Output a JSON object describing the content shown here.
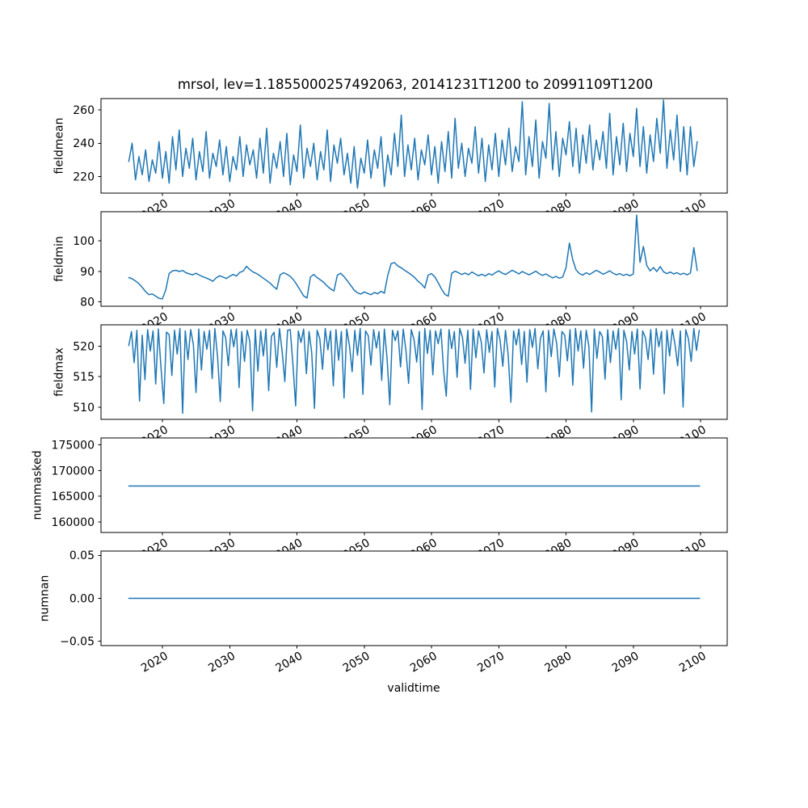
{
  "chart_data": {
    "type": "line",
    "title": "mrsol, lev=1.1855000257492063, 20141231T1200 to 20991109T1200",
    "xlabel": "validtime",
    "line_color": "#1f77b4",
    "background_color": "#ffffff",
    "axis_color": "#000000",
    "grid": "off",
    "legend": "none",
    "xlim": [
      2010.87,
      2103.96
    ],
    "x_ticks": [
      2020,
      2030,
      2040,
      2050,
      2060,
      2070,
      2080,
      2090,
      2100
    ],
    "xtick_labels": [
      "2020",
      "2030",
      "2040",
      "2050",
      "2060",
      "2070",
      "2080",
      "2090",
      "2100"
    ],
    "subplots": [
      {
        "ylabel": "fieldmean",
        "ylim": [
          210.0,
          266.9
        ],
        "yticks": [
          220,
          240,
          260
        ],
        "ytick_labels": [
          "220",
          "240",
          "260"
        ],
        "x0": 2015.0,
        "dx": 0.5,
        "values": [
          229,
          240,
          218,
          232,
          221,
          236,
          217,
          230,
          222,
          241,
          219,
          235,
          216,
          244,
          224,
          248,
          220,
          237,
          225,
          243,
          218,
          235,
          223,
          247,
          219,
          234,
          226,
          242,
          221,
          238,
          217,
          232,
          224,
          244,
          220,
          239,
          227,
          236,
          219,
          243,
          222,
          249,
          216,
          234,
          225,
          241,
          220,
          246,
          215,
          233,
          223,
          251,
          219,
          237,
          226,
          240,
          218,
          235,
          224,
          248,
          217,
          239,
          228,
          243,
          221,
          234,
          216,
          238,
          213,
          231,
          222,
          242,
          219,
          236,
          225,
          244,
          214,
          233,
          221,
          246,
          226,
          257,
          220,
          239,
          224,
          243,
          218,
          236,
          227,
          245,
          221,
          238,
          216,
          241,
          223,
          247,
          219,
          255,
          225,
          240,
          220,
          237,
          228,
          250,
          222,
          243,
          217,
          239,
          224,
          246,
          220,
          242,
          227,
          249,
          223,
          238,
          229,
          265,
          221,
          244,
          226,
          254,
          219,
          241,
          231,
          264,
          224,
          247,
          220,
          243,
          233,
          253,
          226,
          249,
          222,
          245,
          228,
          251,
          224,
          242,
          230,
          247,
          225,
          258,
          221,
          244,
          227,
          252,
          223,
          246,
          232,
          261,
          226,
          250,
          222,
          245,
          229,
          255,
          234,
          266,
          225,
          248,
          230,
          257,
          223,
          250,
          221,
          250,
          226,
          241
        ]
      },
      {
        "ylabel": "fieldmin",
        "ylim": [
          78.6,
          109.6
        ],
        "yticks": [
          80,
          90,
          100
        ],
        "ytick_labels": [
          "80",
          "90",
          "100"
        ],
        "x0": 2015.0,
        "dx": 0.5,
        "values": [
          88.0,
          87.6,
          86.9,
          86.0,
          84.8,
          83.4,
          82.4,
          82.6,
          81.9,
          81.2,
          81.0,
          84.0,
          89.3,
          90.2,
          90.4,
          90.0,
          90.3,
          89.6,
          89.2,
          88.9,
          89.4,
          88.8,
          88.3,
          87.9,
          87.4,
          86.8,
          87.9,
          88.6,
          88.2,
          87.7,
          88.4,
          89.0,
          88.5,
          89.7,
          90.1,
          91.7,
          90.6,
          89.8,
          89.3,
          88.6,
          87.8,
          87.0,
          86.2,
          85.1,
          84.2,
          88.9,
          89.6,
          89.1,
          88.4,
          87.2,
          85.6,
          83.8,
          82.0,
          81.3,
          88.2,
          89.0,
          88.0,
          87.2,
          86.4,
          85.2,
          84.3,
          83.6,
          88.8,
          89.4,
          88.3,
          86.9,
          85.4,
          83.9,
          83.0,
          82.6,
          83.3,
          82.8,
          82.4,
          83.1,
          82.7,
          83.5,
          82.9,
          88.7,
          92.6,
          92.9,
          91.8,
          91.2,
          90.4,
          89.7,
          88.9,
          88.0,
          86.8,
          85.9,
          84.6,
          88.8,
          89.3,
          88.2,
          86.3,
          84.2,
          82.5,
          81.9,
          89.4,
          90.1,
          89.6,
          89.0,
          89.5,
          88.9,
          89.8,
          89.2,
          88.6,
          89.1,
          88.5,
          89.3,
          88.8,
          89.6,
          90.2,
          89.5,
          89.0,
          89.7,
          90.4,
          89.8,
          89.2,
          90.0,
          89.4,
          88.9,
          89.5,
          90.1,
          89.3,
          88.7,
          89.2,
          88.5,
          87.9,
          88.4,
          87.8,
          88.2,
          91.2,
          99.3,
          93.8,
          90.5,
          89.3,
          88.8,
          89.6,
          89.0,
          89.7,
          90.4,
          89.8,
          89.1,
          89.6,
          90.2,
          89.4,
          88.9,
          89.3,
          88.7,
          89.1,
          88.6,
          89.2,
          108.5,
          93.0,
          98.2,
          92.0,
          90.2,
          91.3,
          90.0,
          91.6,
          89.9,
          89.3,
          89.8,
          89.2,
          89.6,
          89.0,
          89.4,
          88.9,
          89.5,
          97.8,
          90.3
        ]
      },
      {
        "ylabel": "fieldmax",
        "ylim": [
          508.0,
          523.5
        ],
        "yticks": [
          510,
          515,
          520
        ],
        "ytick_labels": [
          "510",
          "515",
          "520"
        ],
        "x0": 2015.0,
        "dx": 0.4,
        "values": [
          520.1,
          522.4,
          517.3,
          522.6,
          511.0,
          521.8,
          514.5,
          522.7,
          519.2,
          522.5,
          513.8,
          522.8,
          516.4,
          510.6,
          522.3,
          521.9,
          515.2,
          522.6,
          518.7,
          522.9,
          509.0,
          522.5,
          517.8,
          522.7,
          520.3,
          512.4,
          522.8,
          516.1,
          522.4,
          519.5,
          522.6,
          514.7,
          522.9,
          518.2,
          510.9,
          522.5,
          521.4,
          516.8,
          522.7,
          519.9,
          522.8,
          513.2,
          522.4,
          517.5,
          522.6,
          520.8,
          509.4,
          522.7,
          515.9,
          522.5,
          518.4,
          522.8,
          512.7,
          521.6,
          522.3,
          516.5,
          522.9,
          519.1,
          514.2,
          522.6,
          522.7,
          517.1,
          510.2,
          522.5,
          520.6,
          522.8,
          515.5,
          522.4,
          518.9,
          509.8,
          522.6,
          521.2,
          516.2,
          522.9,
          519.4,
          522.5,
          513.5,
          522.7,
          517.7,
          522.4,
          511.5,
          522.8,
          520.1,
          515.8,
          522.6,
          518.5,
          522.9,
          512.1,
          522.5,
          521.7,
          516.9,
          522.7,
          519.7,
          522.4,
          514.4,
          522.8,
          517.9,
          510.4,
          522.6,
          520.9,
          522.5,
          516.6,
          522.8,
          519.3,
          513.9,
          522.7,
          521.1,
          517.4,
          522.4,
          509.6,
          522.9,
          518.8,
          522.6,
          515.3,
          522.5,
          520.4,
          522.8,
          516.0,
          511.8,
          522.7,
          519.6,
          522.4,
          514.9,
          522.9,
          521.5,
          517.2,
          522.6,
          512.9,
          522.8,
          518.1,
          522.5,
          520.7,
          515.6,
          522.7,
          519.0,
          522.4,
          513.3,
          522.9,
          521.0,
          516.7,
          522.6,
          518.6,
          510.8,
          522.5,
          520.2,
          522.8,
          517.0,
          522.4,
          514.1,
          522.7,
          519.8,
          522.9,
          516.3,
          521.3,
          522.5,
          512.5,
          522.6,
          518.3,
          522.8,
          520.5,
          515.0,
          522.4,
          521.8,
          517.6,
          522.7,
          513.6,
          522.9,
          519.2,
          522.5,
          516.4,
          522.6,
          520.0,
          509.2,
          522.8,
          518.0,
          522.4,
          521.6,
          514.6,
          522.7,
          517.3,
          522.5,
          519.5,
          522.9,
          511.2,
          522.6,
          520.8,
          516.1,
          522.4,
          518.7,
          522.8,
          513.0,
          522.5,
          521.4,
          517.8,
          522.7,
          515.4,
          522.9,
          519.9,
          522.4,
          512.2,
          522.6,
          518.4,
          522.8,
          520.3,
          516.8,
          522.5,
          510.0,
          522.7,
          521.2,
          517.5,
          522.9,
          519.3,
          522.6
        ]
      },
      {
        "ylabel": "nummasked",
        "ylim": [
          157950,
          176370
        ],
        "yticks": [
          160000,
          165000,
          170000,
          175000
        ],
        "ytick_labels": [
          "160000",
          "165000",
          "170000",
          "175000"
        ],
        "x": [
          2015.0,
          2099.86
        ],
        "y": [
          167000,
          167000
        ]
      },
      {
        "ylabel": "numnan",
        "ylim": [
          -0.055,
          0.055
        ],
        "yticks": [
          -0.05,
          0,
          0.05
        ],
        "ytick_labels": [
          "−0.05",
          "0.00",
          "0.05"
        ],
        "x": [
          2015.0,
          2099.86
        ],
        "y": [
          0,
          0
        ]
      }
    ]
  }
}
